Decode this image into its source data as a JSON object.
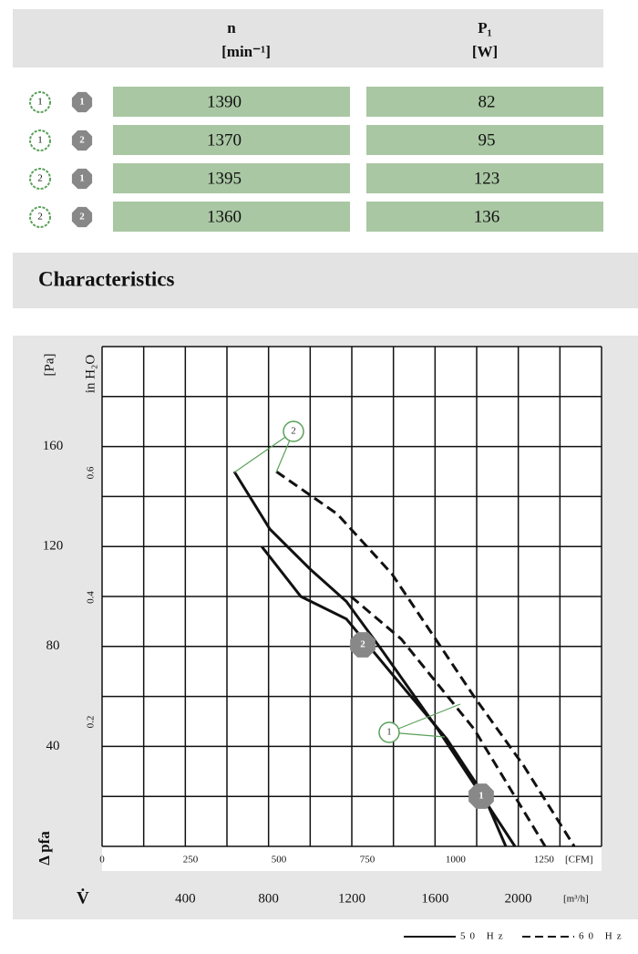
{
  "table": {
    "header": {
      "n": "n",
      "n_unit": "[min⁻¹]",
      "p": "P₁",
      "p_unit": "[W]"
    },
    "rows": [
      {
        "a": "1",
        "b": "1",
        "n": 1390,
        "p": 82
      },
      {
        "a": "1",
        "b": "2",
        "n": 1370,
        "p": 95
      },
      {
        "a": "2",
        "b": "1",
        "n": 1395,
        "p": 123
      },
      {
        "a": "2",
        "b": "2",
        "n": 1360,
        "p": 136
      }
    ]
  },
  "section_title": "Characteristics",
  "chart_data": {
    "type": "line",
    "y_label": "[Pa]",
    "y2_label": "in H₂O",
    "y_symbol": "Δ pfa",
    "x_symbol": "V̇",
    "x_label": "[m³/h]",
    "x2_label": "[CFM]",
    "xlim": [
      0,
      2400
    ],
    "xticks": [
      400,
      800,
      1200,
      1600,
      2000
    ],
    "xgrid": [
      0,
      200,
      400,
      600,
      800,
      1000,
      1200,
      1400,
      1600,
      1800,
      2000,
      2200,
      2400
    ],
    "ylim": [
      0,
      200
    ],
    "yticks": [
      40,
      80,
      120,
      160
    ],
    "ygrid": [
      0,
      20,
      40,
      60,
      80,
      100,
      120,
      140,
      160,
      180,
      200
    ],
    "x2lim": [
      0,
      1412.6
    ],
    "x2ticks": [
      0,
      250,
      500,
      750,
      1000,
      1250
    ],
    "y2lim": [
      0,
      0.803
    ],
    "y2ticks": [
      0.2,
      0.4,
      0.6
    ],
    "series": [
      {
        "style": "solid",
        "color": "#111111",
        "x": [
          635,
          806,
          999,
          1174,
          1349,
          1612,
          1787,
          1984
        ],
        "values": [
          150,
          127,
          111,
          98,
          78,
          47,
          25,
          0
        ]
      },
      {
        "style": "solid",
        "color": "#111111",
        "x": [
          767,
          955,
          1174,
          1393,
          1656,
          1831,
          1940
        ],
        "values": [
          120,
          100,
          91,
          69,
          43,
          21,
          0
        ]
      },
      {
        "style": "dashed",
        "color": "#111111",
        "x": [
          837,
          1130,
          1393,
          1787,
          2028,
          2269
        ],
        "values": [
          150,
          133,
          109,
          60,
          32,
          0
        ]
      },
      {
        "style": "dashed",
        "color": "#111111",
        "x": [
          1196,
          1437,
          1787,
          2129
        ],
        "values": [
          100,
          83,
          47,
          0
        ]
      }
    ],
    "annotations": [
      "2",
      "1",
      "2",
      "1"
    ],
    "legend": [
      {
        "label": "50 Hz",
        "style": "solid"
      },
      {
        "label": "60 Hz",
        "style": "dashed"
      }
    ]
  }
}
